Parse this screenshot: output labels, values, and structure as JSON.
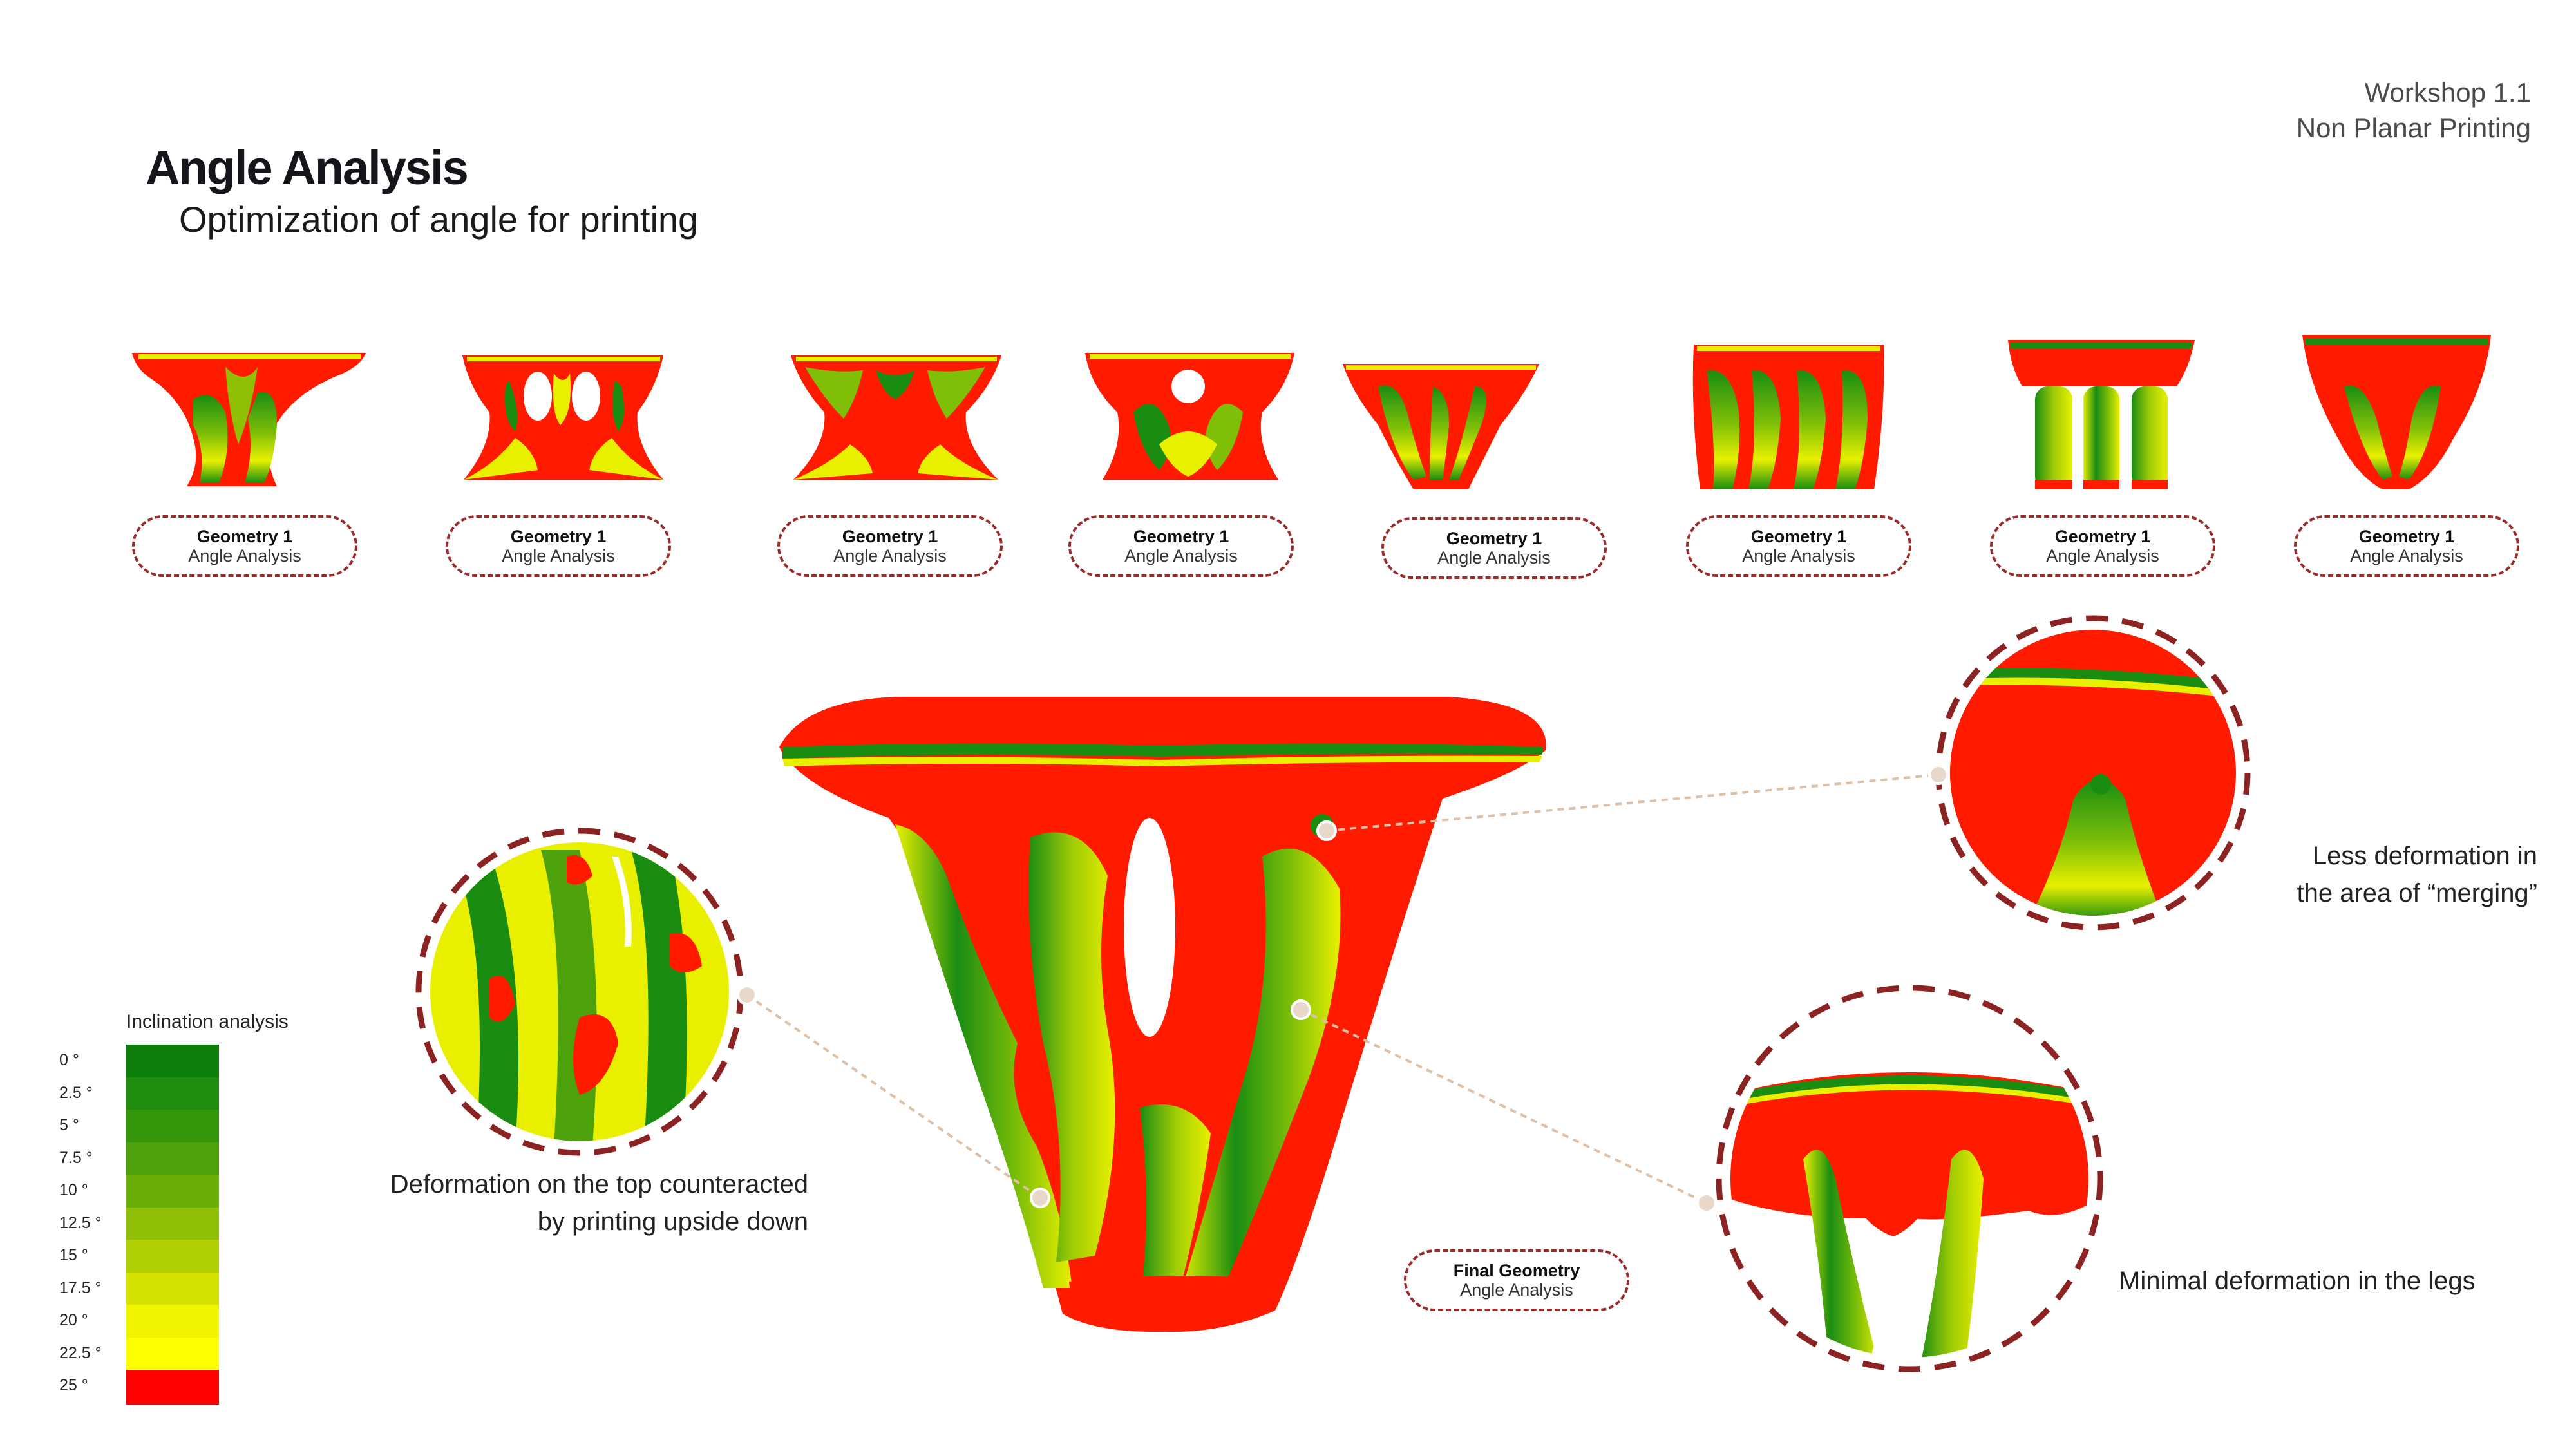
{
  "header": {
    "title": "Angle Analysis",
    "subtitle": "Optimization of angle for printing",
    "workshop": "Workshop 1.1",
    "course": "Non Planar Printing"
  },
  "geometry_labels": [
    {
      "name": "Geometry 1",
      "caption": "Angle Analysis"
    },
    {
      "name": "Geometry 1",
      "caption": "Angle Analysis"
    },
    {
      "name": "Geometry 1",
      "caption": "Angle Analysis"
    },
    {
      "name": "Geometry 1",
      "caption": "Angle Analysis"
    },
    {
      "name": "Geometry 1",
      "caption": "Angle Analysis"
    },
    {
      "name": "Geometry 1",
      "caption": "Angle Analysis"
    },
    {
      "name": "Geometry 1",
      "caption": "Angle Analysis"
    },
    {
      "name": "Geometry 1",
      "caption": "Angle Analysis"
    }
  ],
  "final_label": {
    "name": "Final Geometry",
    "caption": "Angle Analysis"
  },
  "annotations": {
    "top_line1": "Deformation on the top counteracted",
    "top_line2": "by printing upside down",
    "merge_line1": "Less deformation in",
    "merge_line2": "the area of “merging”",
    "legs": "Minimal deformation in the legs"
  },
  "legend": {
    "title": "Inclination analysis",
    "labels": [
      "0 °",
      "2.5 °",
      "5 °",
      "7.5 °",
      "10 °",
      "12.5 °",
      "15 °",
      "17.5 °",
      "20 °",
      "22.5 °",
      "25 °"
    ],
    "colors": [
      "#0d7f0d",
      "#1f8c0c",
      "#34960b",
      "#4da10a",
      "#6aae08",
      "#8fc005",
      "#b1d003",
      "#d4e300",
      "#f3f400",
      "#ffff00",
      "#ff0000"
    ]
  },
  "colors": {
    "red": "#ff1a00",
    "green": "#1a8c12",
    "yellow": "#e8f000",
    "accent_dashed": "#8c2323",
    "leader_line": "#dcc1a8"
  }
}
